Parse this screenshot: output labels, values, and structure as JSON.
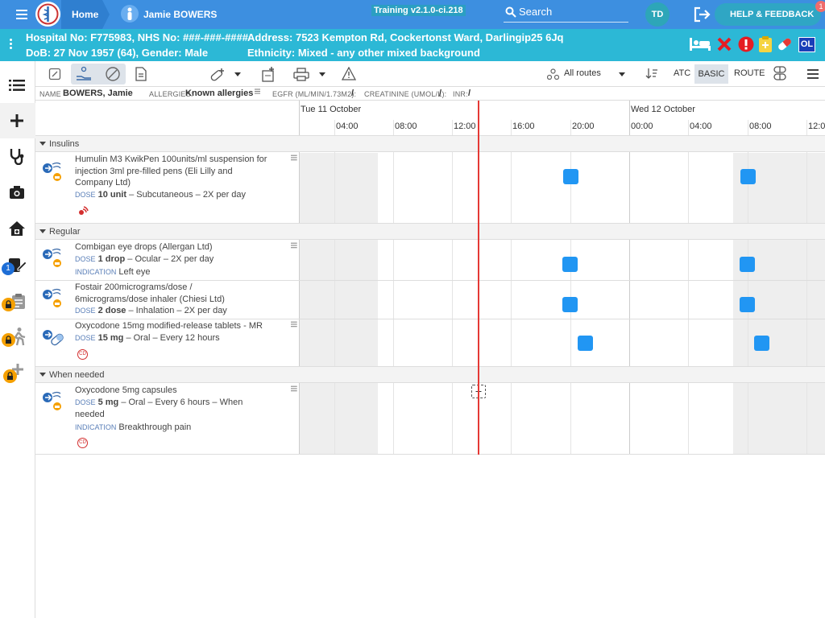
{
  "topbar": {
    "home": "Home",
    "patient_name": "Jamie BOWERS",
    "version": "Training v2.1.0-ci.218",
    "search_placeholder": "Search",
    "user_initials": "TD",
    "help": "HELP & FEEDBACK",
    "help_badge": "1"
  },
  "patient": {
    "hospital": "Hospital No: F775983, NHS No: ###-###-####",
    "address": "Address: 7523 Kempton Rd, Cockertonst Ward, Darlingip25 6Jq",
    "dob": "DoB: 27 Nov 1957 (64), Gender: Male",
    "ethnicity": "Ethnicity: Mixed - any other mixed background",
    "flag_ol": "OL"
  },
  "sidebar": {
    "badge_1": "1"
  },
  "toolbar": {
    "routes": "All routes",
    "atc": "ATC",
    "basic": "BASIC",
    "route": "ROUTE"
  },
  "info": {
    "name_label": "NAME",
    "name_value": "BOWERS, Jamie",
    "allergies_label": "ALLERGIES:",
    "allergies_value": "Known allergies",
    "egfr_label": "EGFR (ML/MIN/1.73M2):",
    "egfr_value": "/",
    "creat_label": "CREATININE (UMOL/L):",
    "creat_value": "/",
    "inr_label": "INR:",
    "inr_value": "/"
  },
  "timeline": {
    "day1": "Tue 11 October",
    "day2": "Wed 12 October",
    "hours": [
      "04:00",
      "08:00",
      "12:00",
      "16:00",
      "20:00",
      "00:00",
      "04:00",
      "08:00",
      "12:0"
    ]
  },
  "sections": {
    "insulins": "Insulins",
    "regular": "Regular",
    "when_needed": "When needed"
  },
  "meds": [
    {
      "name_l1": "Humulin M3 KwikPen 100units/ml suspension for",
      "name_l2": "injection 3ml pre-filled pens (Eli Lilly and",
      "name_l3": "Company Ltd)",
      "dose_k": "DOSE",
      "dose_v": "10 unit",
      "dose_rest": "– Subcutaneous – 2X per day"
    },
    {
      "name_l1": "Combigan eye drops (Allergan Ltd)",
      "dose_k": "DOSE",
      "dose_v": "1 drop",
      "dose_rest": "– Ocular – 2X per day",
      "ind_k": "INDICATION",
      "ind_v": "Left eye"
    },
    {
      "name_l1": "Fostair 200micrograms/dose /",
      "name_l2": "6micrograms/dose inhaler (Chiesi Ltd)",
      "dose_k": "DOSE",
      "dose_v": "2 dose",
      "dose_rest": "– Inhalation – 2X per day"
    },
    {
      "name_l1": "Oxycodone 15mg modified-release tablets - MR",
      "dose_k": "DOSE",
      "dose_v": "15 mg",
      "dose_rest": "– Oral – Every 12 hours",
      "cd": "CD"
    },
    {
      "name_l1": "Oxycodone 5mg capsules",
      "dose_k": "DOSE",
      "dose_v": "5 mg",
      "dose_rest": "– Oral – Every 6 hours – When",
      "dose_l2": "needed",
      "ind_k": "INDICATION",
      "ind_v": "Breakthrough pain",
      "cd": "CD"
    }
  ],
  "colors": {
    "topbar": "#3d8fe0",
    "patient_band": "#2cb8d6",
    "dose_square": "#2196f3",
    "now_line": "#e53935",
    "lock_badge": "#f5a000"
  }
}
